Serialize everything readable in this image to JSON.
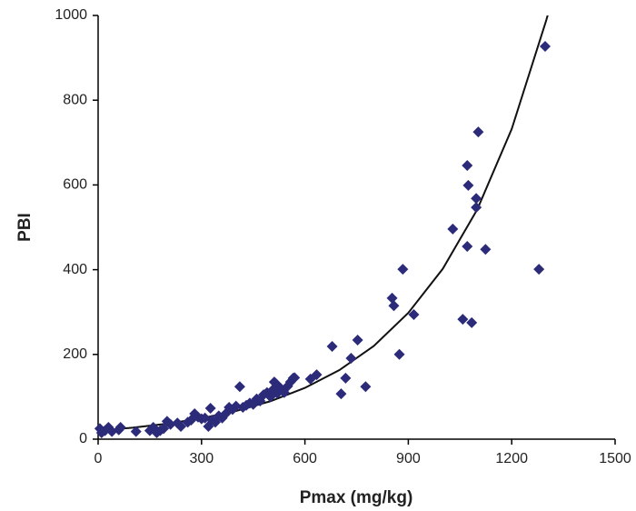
{
  "chart_data": {
    "type": "scatter",
    "x_label": "Pmax (mg/kg)",
    "y_label": "PBI",
    "xlim": [
      0,
      1500
    ],
    "xticks": [
      0,
      300,
      600,
      900,
      1200,
      1500
    ],
    "ylim": [
      0,
      1000
    ],
    "yticks": [
      0,
      200,
      400,
      600,
      800,
      1000
    ],
    "grid": false,
    "color": "#2b2b7a",
    "x": [
      5,
      10,
      20,
      30,
      40,
      60,
      65,
      110,
      150,
      160,
      170,
      180,
      190,
      200,
      210,
      230,
      240,
      260,
      270,
      280,
      290,
      300,
      310,
      320,
      326,
      330,
      340,
      350,
      360,
      370,
      380,
      390,
      400,
      411,
      420,
      430,
      440,
      450,
      460,
      470,
      480,
      490,
      500,
      505,
      511,
      515,
      520,
      530,
      540,
      550,
      558,
      566,
      570,
      616,
      634,
      679,
      705,
      718,
      734,
      753,
      776,
      853,
      858,
      874,
      884,
      916,
      1029,
      1058,
      1071,
      1071,
      1074,
      1084,
      1097,
      1097,
      1103,
      1124,
      1279,
      1297
    ],
    "values": [
      25,
      15,
      20,
      28,
      18,
      22,
      28,
      18,
      20,
      28,
      15,
      20,
      25,
      42,
      35,
      38,
      30,
      40,
      45,
      60,
      52,
      48,
      50,
      30,
      73,
      45,
      40,
      55,
      50,
      60,
      75,
      70,
      78,
      124,
      75,
      80,
      85,
      82,
      95,
      90,
      105,
      110,
      100,
      115,
      135,
      132,
      108,
      120,
      110,
      125,
      135,
      144,
      145,
      142,
      152,
      219,
      107,
      144,
      191,
      234,
      124,
      333,
      315,
      200,
      401,
      294,
      496,
      283,
      646,
      455,
      599,
      275,
      568,
      547,
      725,
      448,
      401,
      927
    ],
    "trendline": {
      "color": "#111111",
      "x": [
        0,
        100,
        200,
        300,
        400,
        500,
        600,
        700,
        800,
        900,
        1000,
        1100,
        1200,
        1300,
        1310
      ],
      "values": [
        20,
        27,
        36.4,
        49.2,
        66.4,
        89.6,
        121,
        163,
        220,
        298,
        402,
        542,
        732,
        988,
        1017
      ]
    }
  }
}
